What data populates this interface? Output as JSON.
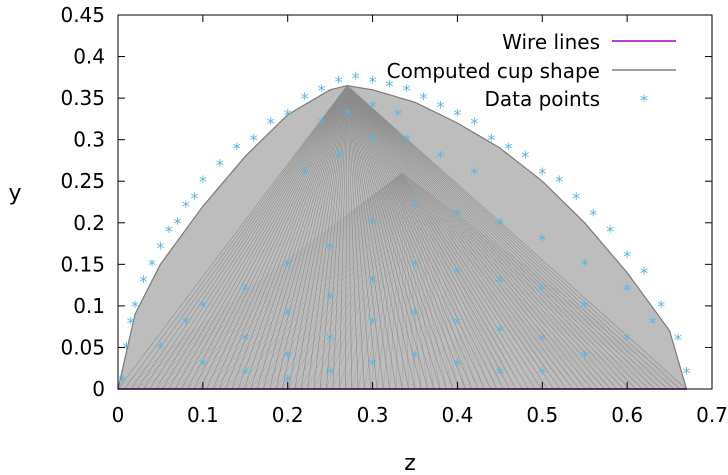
{
  "chart_data": {
    "type": "scatter",
    "xlabel": "z",
    "ylabel": "y",
    "xlim": [
      0,
      0.7
    ],
    "ylim": [
      0,
      0.45
    ],
    "xticks": [
      "0",
      "0.1",
      "0.2",
      "0.3",
      "0.4",
      "0.5",
      "0.6",
      "0.7"
    ],
    "yticks": [
      "0",
      "0.05",
      "0.1",
      "0.15",
      "0.2",
      "0.25",
      "0.3",
      "0.35",
      "0.4",
      "0.45"
    ],
    "grid": false,
    "legend_position": "top-right",
    "series": [
      {
        "name": "Wire lines",
        "kind": "line",
        "color": "#a000c8",
        "x": [
          0,
          0.67
        ],
        "y": [
          0,
          0
        ]
      },
      {
        "name": "Computed cup shape",
        "kind": "surface",
        "color": "#808080",
        "apex": [
          0.27,
          0.365
        ],
        "z_end": 0.67,
        "outline_x": [
          0.0,
          0.02,
          0.05,
          0.1,
          0.15,
          0.2,
          0.25,
          0.27,
          0.3,
          0.35,
          0.4,
          0.45,
          0.5,
          0.55,
          0.6,
          0.65,
          0.67
        ],
        "outline_y": [
          0.0,
          0.09,
          0.15,
          0.22,
          0.28,
          0.33,
          0.36,
          0.365,
          0.36,
          0.345,
          0.32,
          0.29,
          0.25,
          0.2,
          0.14,
          0.07,
          0.0
        ]
      },
      {
        "name": "Data points",
        "kind": "points",
        "color": "#56b4e9",
        "x": [
          0.005,
          0.01,
          0.015,
          0.02,
          0.03,
          0.04,
          0.05,
          0.06,
          0.07,
          0.08,
          0.09,
          0.1,
          0.12,
          0.14,
          0.16,
          0.18,
          0.2,
          0.22,
          0.24,
          0.26,
          0.28,
          0.3,
          0.32,
          0.34,
          0.36,
          0.38,
          0.4,
          0.42,
          0.44,
          0.46,
          0.48,
          0.5,
          0.52,
          0.54,
          0.56,
          0.58,
          0.6,
          0.62,
          0.64,
          0.66,
          0.67,
          0.05,
          0.08,
          0.1,
          0.15,
          0.2,
          0.25,
          0.3,
          0.35,
          0.4,
          0.45,
          0.5,
          0.55,
          0.6,
          0.63,
          0.1,
          0.15,
          0.2,
          0.25,
          0.3,
          0.35,
          0.4,
          0.45,
          0.5,
          0.55,
          0.6,
          0.15,
          0.2,
          0.25,
          0.3,
          0.35,
          0.4,
          0.45,
          0.5,
          0.55,
          0.2,
          0.25,
          0.3,
          0.35,
          0.4,
          0.45,
          0.5,
          0.22,
          0.26,
          0.3,
          0.34,
          0.38,
          0.42,
          0.24,
          0.27,
          0.3,
          0.33
        ],
        "y": [
          0.01,
          0.05,
          0.08,
          0.1,
          0.13,
          0.15,
          0.17,
          0.19,
          0.2,
          0.22,
          0.23,
          0.25,
          0.27,
          0.29,
          0.3,
          0.32,
          0.33,
          0.35,
          0.36,
          0.37,
          0.375,
          0.37,
          0.365,
          0.36,
          0.35,
          0.34,
          0.33,
          0.32,
          0.3,
          0.29,
          0.28,
          0.26,
          0.25,
          0.23,
          0.21,
          0.19,
          0.16,
          0.14,
          0.1,
          0.06,
          0.02,
          0.05,
          0.08,
          0.1,
          0.12,
          0.15,
          0.17,
          0.2,
          0.22,
          0.21,
          0.2,
          0.18,
          0.15,
          0.12,
          0.08,
          0.03,
          0.06,
          0.09,
          0.11,
          0.13,
          0.15,
          0.14,
          0.13,
          0.12,
          0.1,
          0.06,
          0.02,
          0.04,
          0.06,
          0.08,
          0.09,
          0.08,
          0.07,
          0.06,
          0.04,
          0.01,
          0.02,
          0.03,
          0.04,
          0.03,
          0.02,
          0.02,
          0.26,
          0.28,
          0.3,
          0.3,
          0.28,
          0.26,
          0.32,
          0.33,
          0.34,
          0.33
        ]
      }
    ]
  }
}
